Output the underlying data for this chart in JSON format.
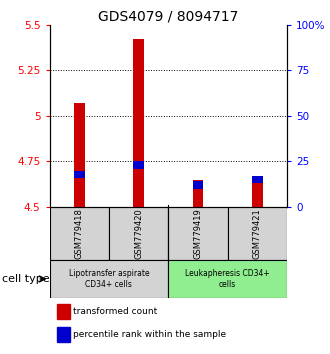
{
  "title": "GDS4079 / 8094717",
  "samples": [
    "GSM779418",
    "GSM779420",
    "GSM779419",
    "GSM779421"
  ],
  "red_values": [
    5.07,
    5.42,
    4.65,
    4.67
  ],
  "blue_values": [
    4.68,
    4.73,
    4.62,
    4.65
  ],
  "ylim": [
    4.5,
    5.5
  ],
  "yticks_left": [
    4.5,
    4.75,
    5.0,
    5.25,
    5.5
  ],
  "ytick_labels_left": [
    "4.5",
    "4.75",
    "5",
    "5.25",
    "5.5"
  ],
  "ytick_labels_right": [
    "0",
    "25",
    "50",
    "75",
    "100%"
  ],
  "gridlines": [
    4.75,
    5.0,
    5.25
  ],
  "group1_indices": [
    0,
    1
  ],
  "group2_indices": [
    2,
    3
  ],
  "group1_label": "Lipotransfer aspirate\nCD34+ cells",
  "group2_label": "Leukapheresis CD34+\ncells",
  "group1_color": "#d3d3d3",
  "group2_color": "#90ee90",
  "sample_box_color": "#d3d3d3",
  "cell_type_label": "cell type",
  "legend_red": "transformed count",
  "legend_blue": "percentile rank within the sample",
  "bar_width": 0.18,
  "red_color": "#cc0000",
  "blue_color": "#0000cc",
  "title_fontsize": 10,
  "tick_fontsize": 7.5,
  "label_fontsize": 7
}
